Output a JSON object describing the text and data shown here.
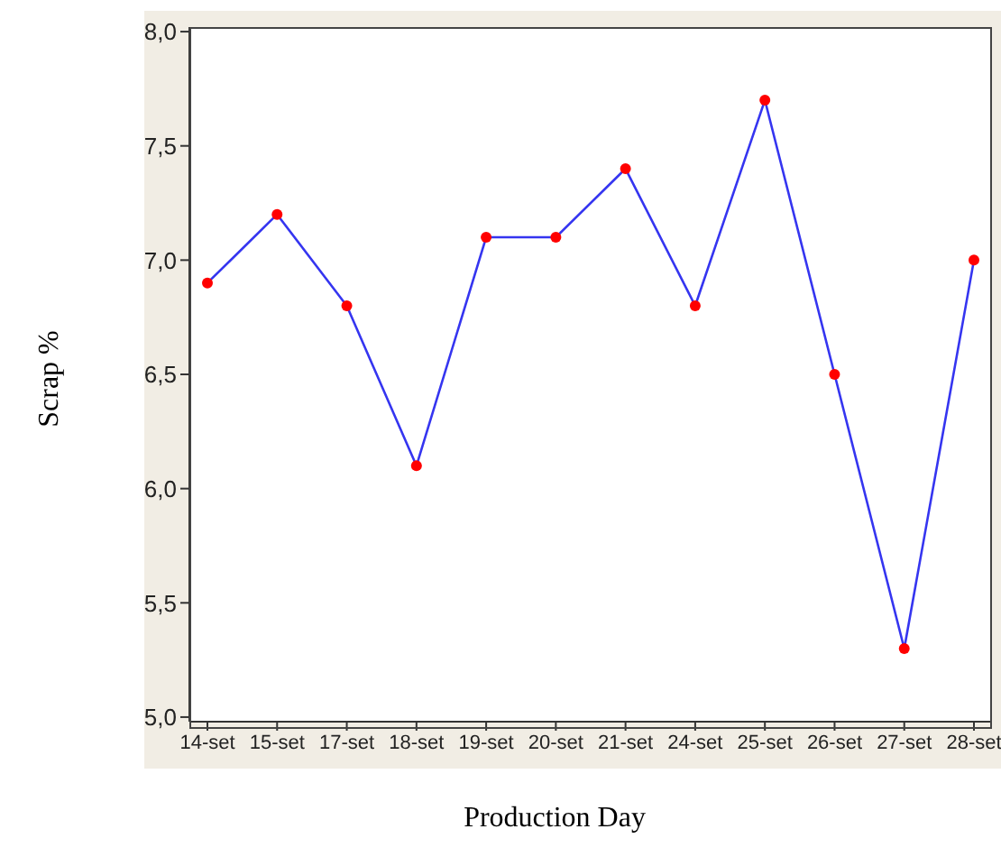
{
  "chart_data": {
    "type": "line",
    "xlabel": "Production Day",
    "ylabel": "Scrap %",
    "categories": [
      "14-set",
      "15-set",
      "17-set",
      "18-set",
      "19-set",
      "20-set",
      "21-set",
      "24-set",
      "25-set",
      "26-set",
      "27-set",
      "28-set"
    ],
    "series": [
      {
        "color": "#3535f0",
        "colors": [
          "#ff0000",
          "#ff0000",
          "#ff0000",
          "#ff0000",
          "#ff0000",
          "#ff0000",
          "#ff0000",
          "#ff0000",
          "#ff0000",
          "#ff0000",
          "#ff0000",
          "#ff0000"
        ],
        "values": [
          6.9,
          7.2,
          6.8,
          6.1,
          7.1,
          7.1,
          7.4,
          6.8,
          7.7,
          6.5,
          5.3,
          7.0
        ]
      }
    ],
    "ylim": [
      4.98,
      8.02
    ],
    "yticks": [
      {
        "value": 5,
        "label": "5,0"
      },
      {
        "value": 5.5,
        "label": "5,5"
      },
      {
        "value": 6,
        "label": "6,0"
      },
      {
        "value": 6.5,
        "label": "6,5"
      },
      {
        "value": 7,
        "label": "7,0"
      },
      {
        "value": 7.5,
        "label": "7,5"
      },
      {
        "value": 8,
        "label": "8,0"
      }
    ],
    "marker": "circle",
    "line_style": "solid",
    "grid": false,
    "legend": false
  }
}
